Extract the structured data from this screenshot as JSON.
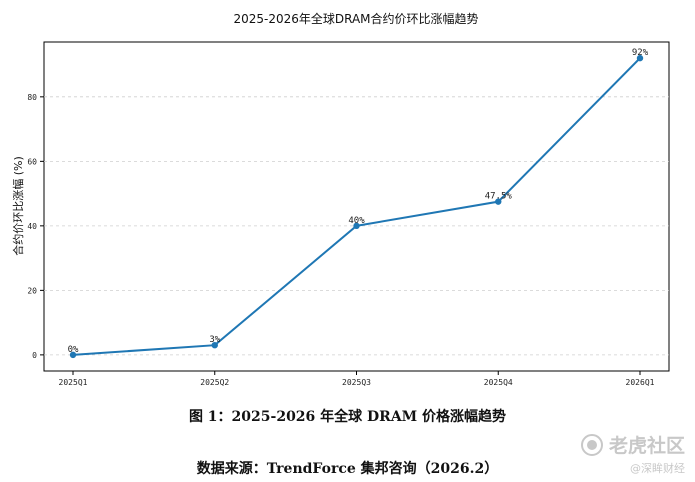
{
  "chart_data": {
    "type": "line",
    "title": "2025-2026年全球DRAM合约价环比涨幅趋势",
    "xlabel": "",
    "ylabel": "合约价环比涨幅 (%)",
    "categories": [
      "2025Q1",
      "2025Q2",
      "2025Q3",
      "2025Q4",
      "2026Q1"
    ],
    "series": [
      {
        "values": [
          0,
          3,
          40,
          47.5,
          92
        ],
        "color": "#1f77b4"
      }
    ],
    "point_labels": [
      "0%",
      "3%",
      "40%",
      "47.5%",
      "92%"
    ],
    "ylim": [
      -5,
      97
    ],
    "yticks": [
      0,
      20,
      40,
      60,
      80
    ],
    "grid": "horizontal dashed",
    "legend": "none"
  },
  "caption": "图 1：2025-2026 年全球 DRAM 价格涨幅趋势",
  "source": "数据来源：TrendForce 集邦咨询（2026.2）",
  "watermark": {
    "main": "老虎社区",
    "sub": "@深眸财经"
  }
}
